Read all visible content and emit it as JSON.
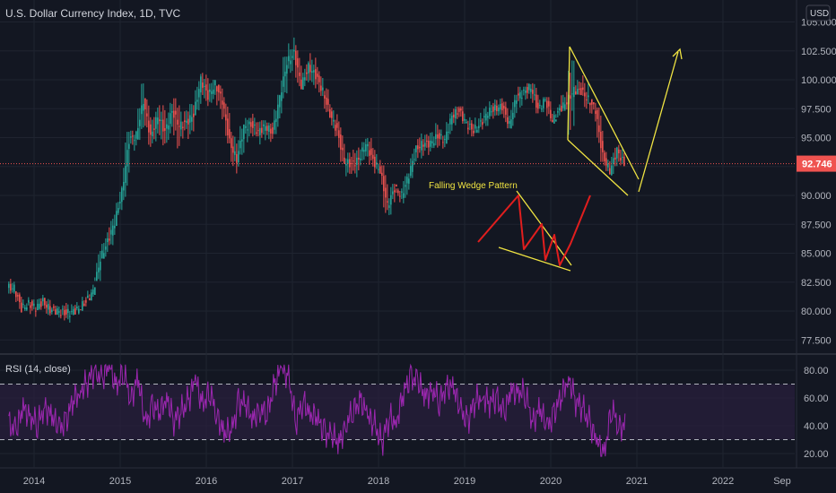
{
  "header": {
    "title": "U.S. Dollar Currency Index, 1D, TVC",
    "currency_button": "USD"
  },
  "colors": {
    "background": "#131722",
    "grid": "#1f2430",
    "up": "#26a69a",
    "down": "#ef5350",
    "price_line": "#ef5350",
    "rsi_line": "#9c27b0",
    "rsi_band": "#2a1f3d",
    "annotation_yellow": "#f0e442",
    "wedge_red": "#e01e1e"
  },
  "annotations": {
    "pattern_label": "Falling Wedge Pattern"
  },
  "rsi": {
    "label": "RSI (14, close)"
  },
  "chart_data": [
    {
      "type": "candlestick",
      "title": "U.S. Dollar Currency Index, 1D, TVC",
      "ylim": [
        76.5,
        104.5
      ],
      "yticks": [
        "77.500",
        "80.000",
        "82.500",
        "85.000",
        "87.500",
        "90.000",
        "92.500",
        "95.000",
        "97.500",
        "100.000",
        "102.500",
        "105.000"
      ],
      "xticks": [
        "2014",
        "2015",
        "2016",
        "2017",
        "2018",
        "2019",
        "2020",
        "2021",
        "2022",
        "Sep"
      ],
      "last_price": "92.746",
      "x": [
        "2013-09",
        "2013-10",
        "2013-11",
        "2013-12",
        "2014-01",
        "2014-02",
        "2014-03",
        "2014-04",
        "2014-05",
        "2014-06",
        "2014-07",
        "2014-08",
        "2014-09",
        "2014-10",
        "2014-11",
        "2014-12",
        "2015-01",
        "2015-02",
        "2015-03",
        "2015-04",
        "2015-05",
        "2015-06",
        "2015-07",
        "2015-08",
        "2015-09",
        "2015-10",
        "2015-11",
        "2015-12",
        "2016-01",
        "2016-02",
        "2016-03",
        "2016-04",
        "2016-05",
        "2016-06",
        "2016-07",
        "2016-08",
        "2016-09",
        "2016-10",
        "2016-11",
        "2016-12",
        "2017-01",
        "2017-02",
        "2017-03",
        "2017-04",
        "2017-05",
        "2017-06",
        "2017-07",
        "2017-08",
        "2017-09",
        "2017-10",
        "2017-11",
        "2017-12",
        "2018-01",
        "2018-02",
        "2018-03",
        "2018-04",
        "2018-05",
        "2018-06",
        "2018-07",
        "2018-08",
        "2018-09",
        "2018-10",
        "2018-11",
        "2018-12",
        "2019-01",
        "2019-02",
        "2019-03",
        "2019-04",
        "2019-05",
        "2019-06",
        "2019-07",
        "2019-08",
        "2019-09",
        "2019-10",
        "2019-11",
        "2019-12",
        "2020-01",
        "2020-02",
        "2020-03",
        "2020-04",
        "2020-05",
        "2020-06",
        "2020-07",
        "2020-08",
        "2020-09",
        "2020-10"
      ],
      "close": [
        82.0,
        80.2,
        80.6,
        80.3,
        80.8,
        80.1,
        80.0,
        79.8,
        79.9,
        80.2,
        80.8,
        81.7,
        84.5,
        86.0,
        87.7,
        90.3,
        94.8,
        95.2,
        98.2,
        95.0,
        96.9,
        95.5,
        97.3,
        96.0,
        96.3,
        97.0,
        100.0,
        98.6,
        99.6,
        98.2,
        94.6,
        93.1,
        95.9,
        96.1,
        95.5,
        96.0,
        95.4,
        98.5,
        101.5,
        102.3,
        99.5,
        101.1,
        100.4,
        99.0,
        97.0,
        95.6,
        92.9,
        92.7,
        93.1,
        94.5,
        93.0,
        92.1,
        89.1,
        90.6,
        90.0,
        91.8,
        94.0,
        94.5,
        94.5,
        95.1,
        94.8,
        96.9,
        97.3,
        96.2,
        95.6,
        96.2,
        97.2,
        97.5,
        97.7,
        96.1,
        98.5,
        98.9,
        99.4,
        97.4,
        98.3,
        96.4,
        97.4,
        98.1,
        99.1,
        99.0,
        98.3,
        97.4,
        93.4,
        92.1,
        93.9,
        92.7
      ],
      "high": [
        82.9,
        81.6,
        81.2,
        81.0,
        81.4,
        81.1,
        80.6,
        80.5,
        80.7,
        80.8,
        81.5,
        82.4,
        85.9,
        87.2,
        88.5,
        90.8,
        95.5,
        95.6,
        100.4,
        98.3,
        97.6,
        97.8,
        98.0,
        98.4,
        97.4,
        97.9,
        100.5,
        100.6,
        100.0,
        99.5,
        98.5,
        95.5,
        96.1,
        96.7,
        97.6,
        96.5,
        96.3,
        98.7,
        102.0,
        103.8,
        103.0,
        101.6,
        102.3,
        101.1,
        99.3,
        97.6,
        96.4,
        93.7,
        94.2,
        94.9,
        95.1,
        94.0,
        92.6,
        91.0,
        90.6,
        91.9,
        94.1,
        95.5,
        95.5,
        96.9,
        95.7,
        97.2,
        97.7,
        97.7,
        96.9,
        97.4,
        97.7,
        98.3,
        98.4,
        98.1,
        98.7,
        99.4,
        99.7,
        99.7,
        98.5,
        98.5,
        98.0,
        99.9,
        102.8,
        100.9,
        100.5,
        98.0,
        97.6,
        93.9,
        94.2,
        94.7
      ],
      "low": [
        81.5,
        79.9,
        80.0,
        79.5,
        80.1,
        79.6,
        79.7,
        79.1,
        79.0,
        79.7,
        80.4,
        81.2,
        82.6,
        84.7,
        85.7,
        88.3,
        89.6,
        93.1,
        94.8,
        94.2,
        94.5,
        93.1,
        94.5,
        92.5,
        94.8,
        94.3,
        97.2,
        97.6,
        97.5,
        95.5,
        94.5,
        91.9,
        92.5,
        93.5,
        95.1,
        94.1,
        94.2,
        95.3,
        97.1,
        100.6,
        99.2,
        99.4,
        99.2,
        98.6,
        96.8,
        95.1,
        92.9,
        91.0,
        91.1,
        92.6,
        92.5,
        91.9,
        88.4,
        88.3,
        88.9,
        88.9,
        91.5,
        93.2,
        93.5,
        94.1,
        93.9,
        94.8,
        96.0,
        96.2,
        95.1,
        95.4,
        95.7,
        96.6,
        96.9,
        95.8,
        96.0,
        97.1,
        98.0,
        97.1,
        97.2,
        96.4,
        96.7,
        97.3,
        94.6,
        98.7,
        97.5,
        95.7,
        92.9,
        92.1,
        91.7,
        92.6
      ]
    },
    {
      "type": "line",
      "title": "RSI (14, close)",
      "ylim": [
        16,
        84
      ],
      "yticks": [
        "20.00",
        "40.00",
        "60.00",
        "80.00"
      ],
      "bands": [
        30,
        70
      ],
      "x": [
        "2013-09",
        "2013-10",
        "2013-11",
        "2013-12",
        "2014-01",
        "2014-02",
        "2014-03",
        "2014-04",
        "2014-05",
        "2014-06",
        "2014-07",
        "2014-08",
        "2014-09",
        "2014-10",
        "2014-11",
        "2014-12",
        "2015-01",
        "2015-02",
        "2015-03",
        "2015-04",
        "2015-05",
        "2015-06",
        "2015-07",
        "2015-08",
        "2015-09",
        "2015-10",
        "2015-11",
        "2015-12",
        "2016-01",
        "2016-02",
        "2016-03",
        "2016-04",
        "2016-05",
        "2016-06",
        "2016-07",
        "2016-08",
        "2016-09",
        "2016-10",
        "2016-11",
        "2016-12",
        "2017-01",
        "2017-02",
        "2017-03",
        "2017-04",
        "2017-05",
        "2017-06",
        "2017-07",
        "2017-08",
        "2017-09",
        "2017-10",
        "2017-11",
        "2017-12",
        "2018-01",
        "2018-02",
        "2018-03",
        "2018-04",
        "2018-05",
        "2018-06",
        "2018-07",
        "2018-08",
        "2018-09",
        "2018-10",
        "2018-11",
        "2018-12",
        "2019-01",
        "2019-02",
        "2019-03",
        "2019-04",
        "2019-05",
        "2019-06",
        "2019-07",
        "2019-08",
        "2019-09",
        "2019-10",
        "2019-11",
        "2019-12",
        "2020-01",
        "2020-02",
        "2020-03",
        "2020-04",
        "2020-05",
        "2020-06",
        "2020-07",
        "2020-08",
        "2020-09",
        "2020-10"
      ],
      "values": [
        42,
        36,
        52,
        48,
        40,
        55,
        46,
        38,
        44,
        58,
        66,
        72,
        80,
        74,
        82,
        70,
        78,
        60,
        75,
        40,
        55,
        48,
        62,
        44,
        50,
        58,
        72,
        56,
        64,
        48,
        36,
        34,
        58,
        54,
        46,
        52,
        48,
        70,
        80,
        76,
        42,
        58,
        50,
        44,
        36,
        32,
        28,
        42,
        50,
        60,
        46,
        40,
        28,
        46,
        44,
        62,
        76,
        72,
        60,
        68,
        56,
        70,
        66,
        50,
        44,
        58,
        62,
        56,
        60,
        48,
        64,
        66,
        62,
        44,
        52,
        38,
        50,
        60,
        76,
        58,
        52,
        42,
        26,
        22,
        52,
        40
      ]
    }
  ]
}
